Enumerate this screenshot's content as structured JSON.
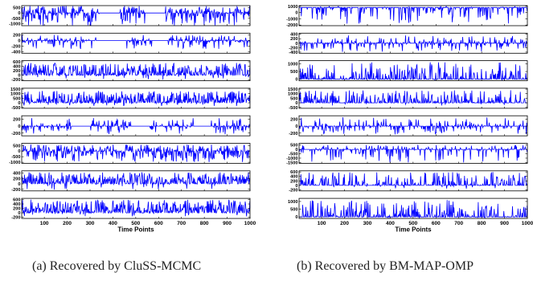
{
  "chart_data": [
    {
      "type": "line",
      "panel": "left",
      "caption": "(a) Recovered by CluSS-MCMC",
      "xlabel": "Time Points",
      "xlim": [
        1,
        1000
      ],
      "xticks": [
        100,
        200,
        300,
        400,
        500,
        600,
        700,
        800,
        900,
        1000
      ],
      "series_color": "#0000ff",
      "subplots": [
        {
          "yticks": [
            500,
            0,
            -500,
            -1000
          ],
          "ylim": [
            -1200,
            700
          ],
          "baseline": 0,
          "amp": [
            700,
            1200
          ],
          "density": 0.9,
          "mode": "both",
          "silent": [
            [
              340,
              430
            ],
            [
              540,
              630
            ]
          ]
        },
        {
          "yticks": [
            200,
            0,
            -200,
            -400
          ],
          "ylim": [
            -450,
            260
          ],
          "baseline": 0,
          "amp": [
            200,
            300
          ],
          "density": 0.55,
          "mode": "both",
          "silent": [
            [
              330,
              460
            ],
            [
              570,
              640
            ]
          ]
        },
        {
          "yticks": [
            600,
            400,
            200,
            0,
            -200
          ],
          "ylim": [
            -250,
            650
          ],
          "baseline": 0,
          "amp": [
            550,
            200
          ],
          "density": 0.8,
          "mode": "up",
          "silent": []
        },
        {
          "yticks": [
            1500,
            1000,
            500,
            0,
            -500
          ],
          "ylim": [
            -600,
            1600
          ],
          "baseline": 0,
          "amp": [
            1300,
            350
          ],
          "density": 0.8,
          "mode": "up",
          "silent": []
        },
        {
          "yticks": [
            200,
            0,
            -200
          ],
          "ylim": [
            -280,
            300
          ],
          "baseline": 0,
          "amp": [
            250,
            250
          ],
          "density": 0.55,
          "mode": "both",
          "silent": [
            [
              220,
              300
            ],
            [
              480,
              560
            ],
            [
              760,
              830
            ]
          ]
        },
        {
          "yticks": [
            500,
            0,
            -500,
            -1000
          ],
          "ylim": [
            -1100,
            700
          ],
          "baseline": 0,
          "amp": [
            600,
            1000
          ],
          "density": 0.85,
          "mode": "both",
          "silent": []
        },
        {
          "yticks": [
            400,
            200,
            0,
            -200
          ],
          "ylim": [
            -260,
            480
          ],
          "baseline": 0,
          "amp": [
            430,
            220
          ],
          "density": 0.85,
          "mode": "up",
          "silent": []
        },
        {
          "yticks": [
            600,
            400,
            200,
            0,
            -200
          ],
          "ylim": [
            -250,
            650
          ],
          "baseline": 0,
          "amp": [
            600,
            200
          ],
          "density": 0.85,
          "mode": "up",
          "silent": []
        }
      ]
    },
    {
      "type": "line",
      "panel": "right",
      "caption": "(b) Recovered by BM-MAP-OMP",
      "xlabel": "Time Points",
      "xlim": [
        1,
        1000
      ],
      "xticks": [
        100,
        200,
        300,
        400,
        500,
        600,
        700,
        800,
        900,
        1000
      ],
      "series_color": "#0000ff",
      "subplots": [
        {
          "yticks": [
            1000,
            0,
            -1000,
            -2000
          ],
          "ylim": [
            -2100,
            1100
          ],
          "baseline": 800,
          "amp": [
            200,
            2600
          ],
          "density": 0.35,
          "mode": "down",
          "silent": []
        },
        {
          "yticks": [
            400,
            200,
            0,
            -200,
            -400
          ],
          "ylim": [
            -450,
            450
          ],
          "baseline": 0,
          "amp": [
            350,
            400
          ],
          "density": 0.5,
          "mode": "both",
          "silent": []
        },
        {
          "yticks": [
            1000,
            500,
            0
          ],
          "ylim": [
            -100,
            1200
          ],
          "baseline": 0,
          "amp": [
            1100,
            50
          ],
          "density": 0.45,
          "mode": "up",
          "silent": []
        },
        {
          "yticks": [
            1500,
            1000,
            500,
            0,
            -500
          ],
          "ylim": [
            -600,
            1600
          ],
          "baseline": 0,
          "amp": [
            1400,
            300
          ],
          "density": 0.5,
          "mode": "up",
          "silent": []
        },
        {
          "yticks": [
            200,
            0,
            -200
          ],
          "ylim": [
            -280,
            300
          ],
          "baseline": 0,
          "amp": [
            260,
            240
          ],
          "density": 0.5,
          "mode": "both",
          "silent": []
        },
        {
          "yticks": [
            500,
            0,
            -500,
            -1000,
            -1500
          ],
          "ylim": [
            -1600,
            700
          ],
          "baseline": 0,
          "amp": [
            550,
            1500
          ],
          "density": 0.45,
          "mode": "both",
          "silent": []
        },
        {
          "yticks": [
            600,
            400,
            200,
            0,
            -200
          ],
          "ylim": [
            -250,
            650
          ],
          "baseline": 0,
          "amp": [
            600,
            150
          ],
          "density": 0.45,
          "mode": "up",
          "silent": []
        },
        {
          "yticks": [
            1000,
            500,
            0
          ],
          "ylim": [
            -100,
            1200
          ],
          "baseline": 0,
          "amp": [
            1100,
            60
          ],
          "density": 0.45,
          "mode": "up",
          "silent": []
        }
      ]
    }
  ]
}
